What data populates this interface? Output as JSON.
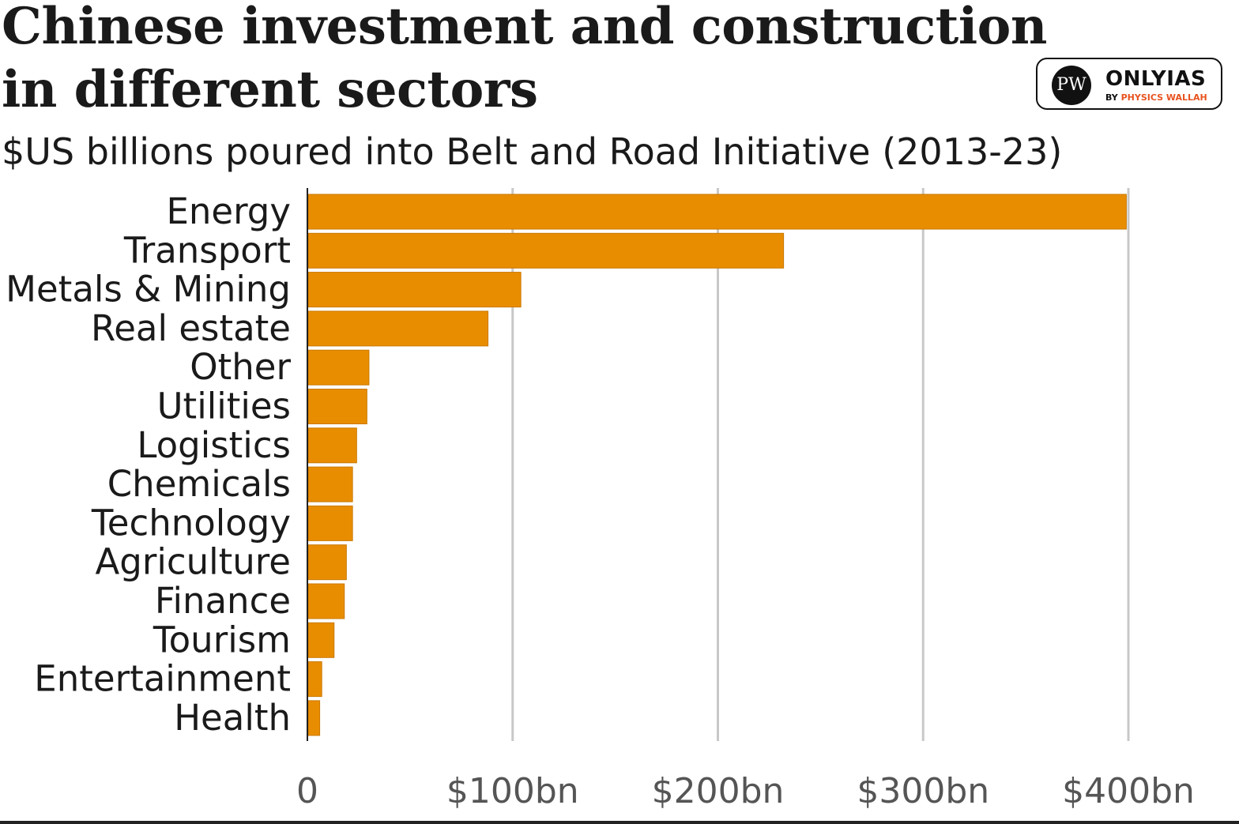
{
  "logo": {
    "mark": "PW",
    "name": "ONLYIAS",
    "byline_prefix": "BY",
    "byline_brand": "PHYSICS WALLAH"
  },
  "colors": {
    "bar": "#E98D00",
    "bar_edge": "#C97800",
    "grid": "#c8c8c8",
    "axis": "#222222",
    "tick_text": "#555555",
    "label_text": "#1a1a1a"
  },
  "chart_data": {
    "type": "bar",
    "orientation": "horizontal",
    "title": "Chinese investment and construction in different sectors",
    "subtitle": "$US billions poured into Belt and Road Initiative (2013-23)",
    "xlabel": "",
    "ylabel": "",
    "categories": [
      "Energy",
      "Transport",
      "Metals & Mining",
      "Real estate",
      "Other",
      "Utilities",
      "Logistics",
      "Chemicals",
      "Technology",
      "Agriculture",
      "Finance",
      "Tourism",
      "Entertainment",
      "Health"
    ],
    "values": [
      399,
      232,
      104,
      88,
      30,
      29,
      24,
      22,
      22,
      19,
      18,
      13,
      7,
      6
    ],
    "xlim": [
      0,
      400
    ],
    "xticks": [
      0,
      100,
      200,
      300,
      400
    ],
    "xtick_labels": [
      "0",
      "$100bn",
      "$200bn",
      "$300bn",
      "$400bn"
    ],
    "grid": "vertical",
    "legend": "none"
  }
}
